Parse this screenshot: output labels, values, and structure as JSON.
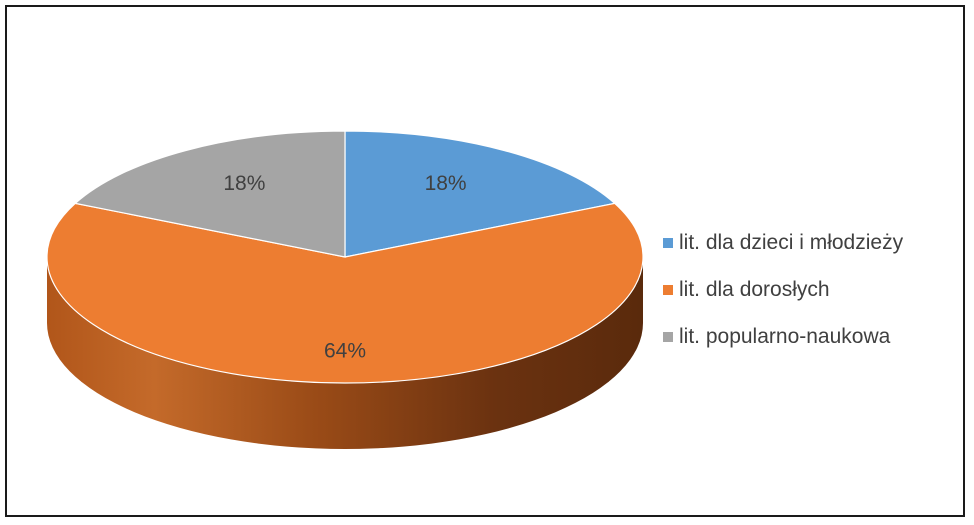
{
  "chart_data": {
    "type": "pie",
    "style": "3d",
    "title": "",
    "categories": [
      "lit. dla dzieci i młodzieży",
      "lit. dla dorosłych",
      "lit. popularno-naukowa"
    ],
    "values": [
      18,
      64,
      18
    ],
    "labels": [
      "18%",
      "64%",
      "18%"
    ],
    "colors": [
      "#5b9bd5",
      "#ed7d31",
      "#a5a5a5"
    ],
    "legend_position": "right"
  },
  "legend": {
    "items": [
      {
        "label": "lit. dla dzieci i młodzieży",
        "color": "#5b9bd5"
      },
      {
        "label": "lit. dla dorosłych",
        "color": "#ed7d31"
      },
      {
        "label": "lit. popularno-naukowa",
        "color": "#a5a5a5"
      }
    ]
  }
}
